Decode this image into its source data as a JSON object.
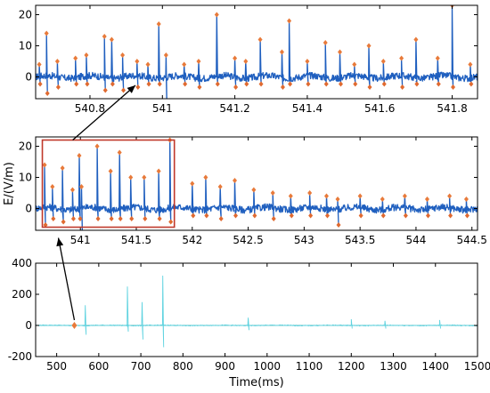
{
  "chart_data": [
    {
      "id": "zoom-top",
      "type": "line",
      "ylabel": "",
      "xlabel": "",
      "xlim": [
        540.65,
        541.87
      ],
      "ylim": [
        -7,
        23
      ],
      "xticks": [
        540.8,
        541,
        541.2,
        541.4,
        541.6,
        541.8
      ],
      "xtick_labels": [
        "540.8",
        "541",
        "541.2",
        "541.4",
        "541.6",
        "541.8"
      ],
      "yticks": [
        0,
        10,
        20
      ],
      "ytick_labels": [
        "0",
        "10",
        "20"
      ],
      "spikes": [
        {
          "x": 540.66,
          "peak": 4,
          "trough": -2
        },
        {
          "x": 540.68,
          "peak": 14,
          "trough": -5
        },
        {
          "x": 540.71,
          "peak": 5,
          "trough": -3
        },
        {
          "x": 540.76,
          "peak": 6,
          "trough": -2
        },
        {
          "x": 540.79,
          "peak": 7,
          "trough": -2
        },
        {
          "x": 540.84,
          "peak": 13,
          "trough": -4
        },
        {
          "x": 540.86,
          "peak": 12,
          "trough": -2
        },
        {
          "x": 540.89,
          "peak": 7,
          "trough": -4
        },
        {
          "x": 540.93,
          "peak": 5,
          "trough": -3
        },
        {
          "x": 540.96,
          "peak": 4,
          "trough": -2
        },
        {
          "x": 540.99,
          "peak": 17,
          "trough": -2
        },
        {
          "x": 541.01,
          "peak": 7,
          "trough": -11
        },
        {
          "x": 541.06,
          "peak": 4,
          "trough": -2
        },
        {
          "x": 541.1,
          "peak": 5,
          "trough": -3
        },
        {
          "x": 541.15,
          "peak": 20,
          "trough": -2
        },
        {
          "x": 541.2,
          "peak": 6,
          "trough": -3
        },
        {
          "x": 541.23,
          "peak": 5,
          "trough": -2
        },
        {
          "x": 541.27,
          "peak": 12,
          "trough": -2
        },
        {
          "x": 541.33,
          "peak": 8,
          "trough": -3
        },
        {
          "x": 541.35,
          "peak": 18,
          "trough": -2
        },
        {
          "x": 541.4,
          "peak": 5,
          "trough": -2
        },
        {
          "x": 541.45,
          "peak": 11,
          "trough": -2
        },
        {
          "x": 541.49,
          "peak": 8,
          "trough": -2
        },
        {
          "x": 541.53,
          "peak": 4,
          "trough": -2
        },
        {
          "x": 541.57,
          "peak": 10,
          "trough": -3
        },
        {
          "x": 541.61,
          "peak": 5,
          "trough": -2
        },
        {
          "x": 541.66,
          "peak": 6,
          "trough": -3
        },
        {
          "x": 541.7,
          "peak": 12,
          "trough": -2
        },
        {
          "x": 541.76,
          "peak": 6,
          "trough": -2
        },
        {
          "x": 541.8,
          "peak": 23,
          "trough": -3
        },
        {
          "x": 541.85,
          "peak": 4,
          "trough": -2
        }
      ]
    },
    {
      "id": "mid",
      "type": "line",
      "ylabel": "E/(V/m)",
      "xlabel": "",
      "xlim": [
        540.6,
        544.55
      ],
      "ylim": [
        -7,
        23
      ],
      "xticks": [
        541,
        541.5,
        542,
        542.5,
        543,
        543.5,
        544,
        544.5
      ],
      "xtick_labels": [
        "541",
        "541.5",
        "542",
        "542.5",
        "543",
        "543.5",
        "544",
        "544.5"
      ],
      "yticks": [
        0,
        10,
        20
      ],
      "ytick_labels": [
        "0",
        "10",
        "20"
      ],
      "zoom_box": {
        "x0": 540.66,
        "x1": 541.84,
        "y0": -6,
        "y1": 22
      },
      "spikes": [
        {
          "x": 540.68,
          "peak": 14,
          "trough": -5
        },
        {
          "x": 540.75,
          "peak": 7,
          "trough": -3
        },
        {
          "x": 540.84,
          "peak": 13,
          "trough": -4
        },
        {
          "x": 540.93,
          "peak": 6,
          "trough": -3
        },
        {
          "x": 540.99,
          "peak": 17,
          "trough": -3
        },
        {
          "x": 541.01,
          "peak": 7,
          "trough": -9
        },
        {
          "x": 541.15,
          "peak": 20,
          "trough": -3
        },
        {
          "x": 541.27,
          "peak": 12,
          "trough": -3
        },
        {
          "x": 541.35,
          "peak": 18,
          "trough": -3
        },
        {
          "x": 541.45,
          "peak": 10,
          "trough": -3
        },
        {
          "x": 541.57,
          "peak": 10,
          "trough": -3
        },
        {
          "x": 541.7,
          "peak": 12,
          "trough": -3
        },
        {
          "x": 541.8,
          "peak": 22,
          "trough": -4
        },
        {
          "x": 542.0,
          "peak": 8,
          "trough": -2
        },
        {
          "x": 542.12,
          "peak": 10,
          "trough": -2
        },
        {
          "x": 542.25,
          "peak": 7,
          "trough": -3
        },
        {
          "x": 542.38,
          "peak": 9,
          "trough": -2
        },
        {
          "x": 542.55,
          "peak": 6,
          "trough": -2
        },
        {
          "x": 542.72,
          "peak": 5,
          "trough": -3
        },
        {
          "x": 542.88,
          "peak": 4,
          "trough": -2
        },
        {
          "x": 543.05,
          "peak": 5,
          "trough": -2
        },
        {
          "x": 543.2,
          "peak": 4,
          "trough": -2
        },
        {
          "x": 543.3,
          "peak": 3,
          "trough": -5
        },
        {
          "x": 543.5,
          "peak": 4,
          "trough": -2
        },
        {
          "x": 543.7,
          "peak": 3,
          "trough": -2
        },
        {
          "x": 543.9,
          "peak": 4,
          "trough": -2
        },
        {
          "x": 544.1,
          "peak": 3,
          "trough": -2
        },
        {
          "x": 544.3,
          "peak": 4,
          "trough": -2
        },
        {
          "x": 544.45,
          "peak": 3,
          "trough": -2
        }
      ]
    },
    {
      "id": "bottom",
      "type": "line",
      "xlabel": "Time(ms)",
      "ylabel": "",
      "xlim": [
        450,
        1500
      ],
      "ylim": [
        -200,
        400
      ],
      "xticks": [
        500,
        600,
        700,
        800,
        900,
        1000,
        1100,
        1200,
        1300,
        1400,
        1500
      ],
      "xtick_labels": [
        "500",
        "600",
        "700",
        "800",
        "900",
        "1000",
        "1100",
        "1200",
        "1300",
        "1400",
        "1500"
      ],
      "yticks": [
        -200,
        0,
        200,
        400
      ],
      "ytick_labels": [
        "-200",
        "0",
        "200",
        "400"
      ],
      "highlight_x": 542,
      "spikes": [
        {
          "x": 568,
          "peak": 130,
          "trough": -60
        },
        {
          "x": 668,
          "peak": 250,
          "trough": -40
        },
        {
          "x": 703,
          "peak": 150,
          "trough": -90
        },
        {
          "x": 752,
          "peak": 320,
          "trough": -140
        },
        {
          "x": 955,
          "peak": 50,
          "trough": -30
        },
        {
          "x": 1200,
          "peak": 40,
          "trough": -20
        },
        {
          "x": 1280,
          "peak": 30,
          "trough": -20
        },
        {
          "x": 1410,
          "peak": 35,
          "trough": -20
        }
      ]
    }
  ]
}
